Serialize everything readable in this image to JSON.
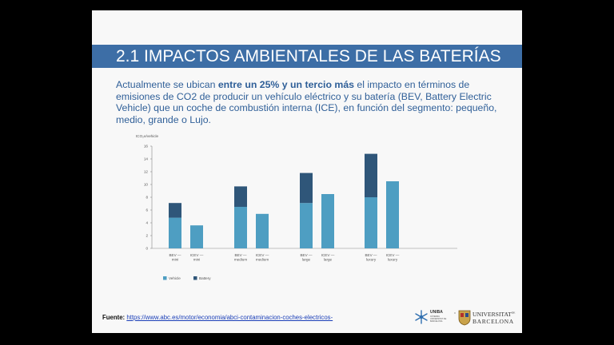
{
  "slide": {
    "title": "2.1 IMPACTOS AMBIENTALES DE LAS BATERÍAS",
    "intro": {
      "prefix": "Actualmente se ubican ",
      "bold": "entre un 25% y un tercio más",
      "suffix": " el impacto en términos de emisiones de CO2 de producir un vehículo eléctrico y su batería (BEV, Battery Electric Vehicle) que un coche de combustión interna (ICE), en función del segmento: pequeño, medio, grande o Lujo."
    },
    "source": {
      "label": "Fuente:",
      "link": "https://www.abc.es/motor/economia/abci-contaminacion-coches-electricos-"
    },
    "logos": {
      "uniba": "UNIBA",
      "uniba_sub": "CÀTEDRA UNIVERSITAT DE BARCELONA",
      "separator": "x",
      "ub_line1": "UNIVERSITAT",
      "ub_de": "DE",
      "ub_line2": "BARCELONA"
    }
  },
  "chart_data": {
    "type": "bar",
    "stacked": true,
    "ylabel": "tCO₂e/vehicle",
    "ylim": [
      0,
      16
    ],
    "yticks": [
      0,
      2,
      4,
      6,
      8,
      10,
      12,
      14,
      16
    ],
    "grid": false,
    "legend_position": "bottom-left",
    "categories": [
      [
        "BEV —",
        "mini"
      ],
      [
        "ICEV —",
        "mini"
      ],
      [
        "BEV —",
        "medium"
      ],
      [
        "ICEV —",
        "medium"
      ],
      [
        "BEV —",
        "large"
      ],
      [
        "ICEV —",
        "large"
      ],
      [
        "BEV —",
        "luxury"
      ],
      [
        "ICEV —",
        "luxury"
      ]
    ],
    "series": [
      {
        "name": "Vehicle",
        "color": "#4e9ec2",
        "values": [
          4.8,
          3.6,
          6.5,
          5.4,
          7.1,
          8.5,
          8.0,
          10.5
        ]
      },
      {
        "name": "Battery",
        "color": "#2f5679",
        "values": [
          2.3,
          0,
          3.2,
          0,
          4.7,
          0,
          6.8,
          0
        ]
      }
    ]
  }
}
